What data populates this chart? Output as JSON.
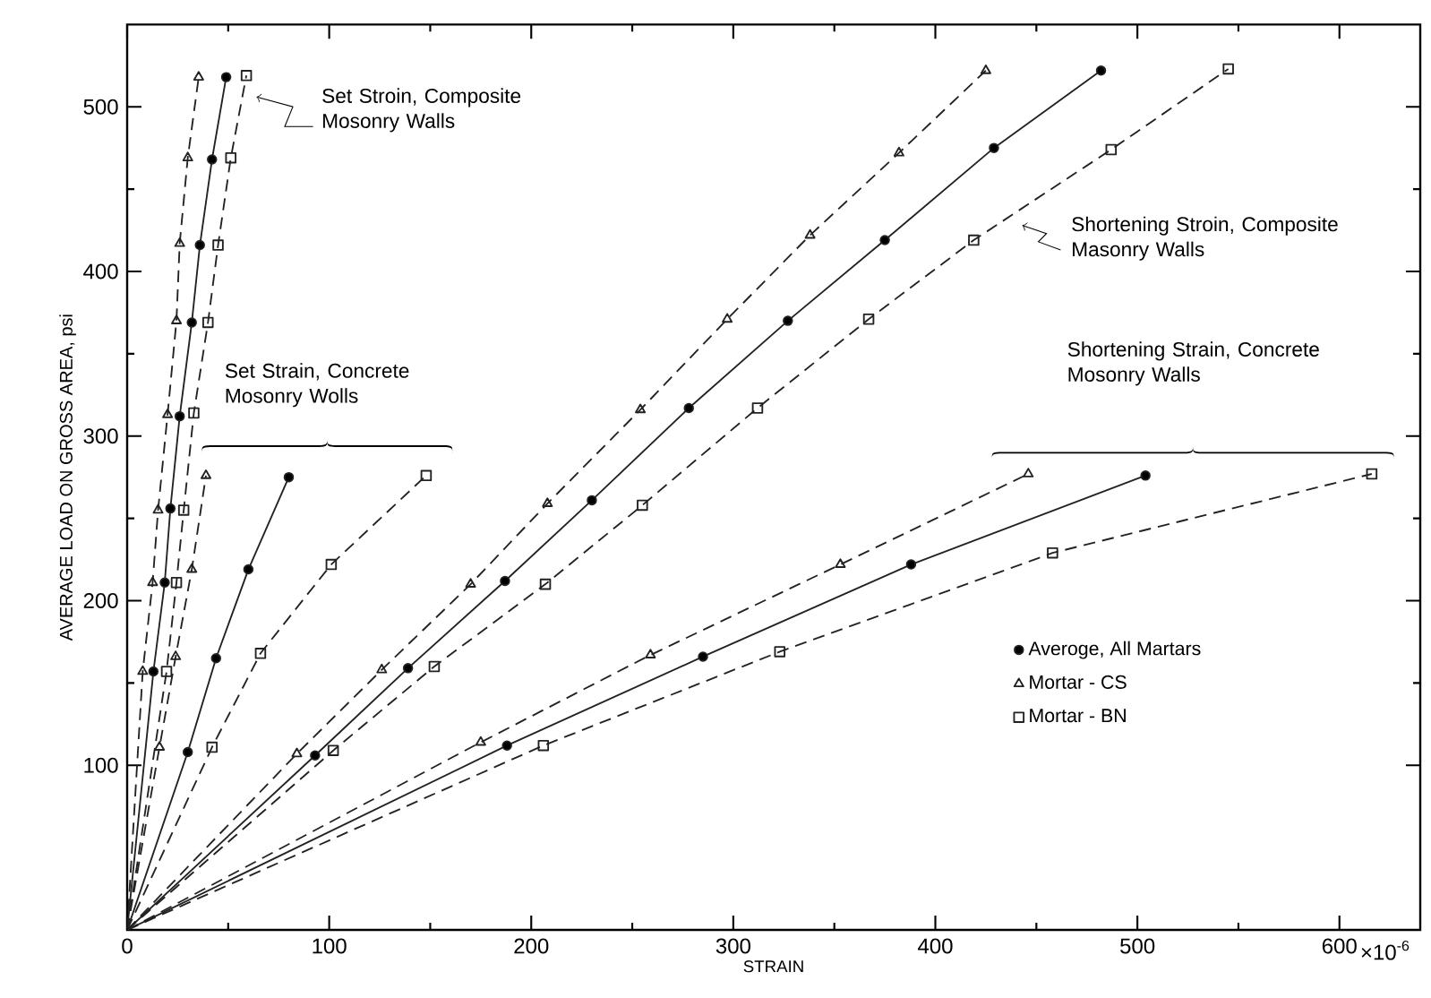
{
  "chart_data": {
    "type": "line",
    "xlabel": "STRAIN",
    "ylabel": "AVERAGE LOAD ON GROSS AREA, psi",
    "xlim": [
      0,
      640
    ],
    "ylim": [
      0,
      550
    ],
    "xticks": [
      0,
      100,
      200,
      300,
      400,
      500,
      600
    ],
    "yticks": [
      100,
      200,
      300,
      400,
      500
    ],
    "legend": "bottom right",
    "grid": false,
    "annotations": [
      "Set Stroin, Composite Mosonry Walls",
      "Set Strain, Concrete Mosonry Wolls",
      "Shortening Stroin, Composite Masonry Walls",
      "Shortening Strain, Concrete Mosonry Walls",
      "×10$^{-6}$"
    ],
    "series": [
      {
        "name": "Averoge, All Martars",
        "color": "#222222",
        "marker": "circle",
        "line_style": "solid",
        "x": [
          0,
          13,
          18.6,
          21.4,
          26,
          32,
          36,
          42,
          49
        ],
        "values": [
          0,
          157,
          211,
          256,
          312,
          369,
          416,
          468,
          518
        ]
      },
      {
        "name": "Mortar - CS",
        "color": "#222222",
        "marker": "triangle",
        "line_style": "dashed",
        "x": [
          0,
          7.7,
          12.6,
          15.3,
          20,
          24.4,
          26,
          30,
          35.4
        ],
        "values": [
          0,
          157,
          211,
          255,
          313,
          370,
          417,
          469,
          518
        ]
      },
      {
        "name": "Mortar - BN",
        "color": "#222222",
        "marker": "square",
        "line_style": "dashed",
        "x": [
          0,
          19.5,
          24.4,
          28,
          33,
          40,
          45,
          51.3,
          59
        ],
        "values": [
          0,
          157,
          211,
          255,
          314,
          369,
          416,
          469,
          519
        ]
      },
      {
        "color": "#222222",
        "marker": "circle",
        "line_style": "solid",
        "x": [
          0,
          30,
          44,
          60,
          80
        ],
        "values": [
          0,
          108,
          165,
          219,
          275
        ]
      },
      {
        "color": "#222222",
        "marker": "triangle",
        "line_style": "dashed",
        "x": [
          0,
          16,
          24,
          32,
          39
        ],
        "values": [
          0,
          111,
          166,
          219,
          276
        ]
      },
      {
        "color": "#222222",
        "marker": "square",
        "line_style": "dashed",
        "x": [
          0,
          42,
          66,
          101,
          148
        ],
        "values": [
          0,
          111,
          168,
          222,
          276
        ]
      },
      {
        "color": "#222222",
        "marker": "circle",
        "line_style": "solid",
        "x": [
          0,
          93,
          139,
          187,
          230,
          278,
          327,
          375,
          429,
          482
        ],
        "values": [
          0,
          106,
          159,
          212,
          261,
          317,
          370,
          419,
          475,
          522
        ]
      },
      {
        "color": "#222222",
        "marker": "triangle",
        "line_style": "dashed",
        "x": [
          0,
          84,
          126,
          170,
          208,
          254,
          297,
          338,
          382,
          425
        ],
        "values": [
          0,
          107,
          158,
          210,
          259,
          316,
          371,
          422,
          472,
          522
        ]
      },
      {
        "color": "#222222",
        "marker": "square",
        "line_style": "dashed",
        "x": [
          0,
          102,
          152,
          207,
          255,
          312,
          367,
          419,
          487,
          545
        ],
        "values": [
          0,
          109,
          160,
          210,
          258,
          317,
          371,
          419,
          474,
          523
        ]
      },
      {
        "color": "#222222",
        "marker": "circle",
        "line_style": "solid",
        "x": [
          0,
          188,
          285,
          388,
          504
        ],
        "values": [
          0,
          112,
          166,
          222,
          276
        ]
      },
      {
        "color": "#222222",
        "marker": "triangle",
        "line_style": "dashed",
        "x": [
          0,
          175,
          259,
          353,
          446
        ],
        "values": [
          0,
          114,
          167,
          222,
          277
        ]
      },
      {
        "color": "#222222",
        "marker": "square",
        "line_style": "dashed",
        "x": [
          0,
          206,
          323,
          458,
          616
        ],
        "values": [
          0,
          112,
          169,
          229,
          277
        ]
      }
    ]
  }
}
